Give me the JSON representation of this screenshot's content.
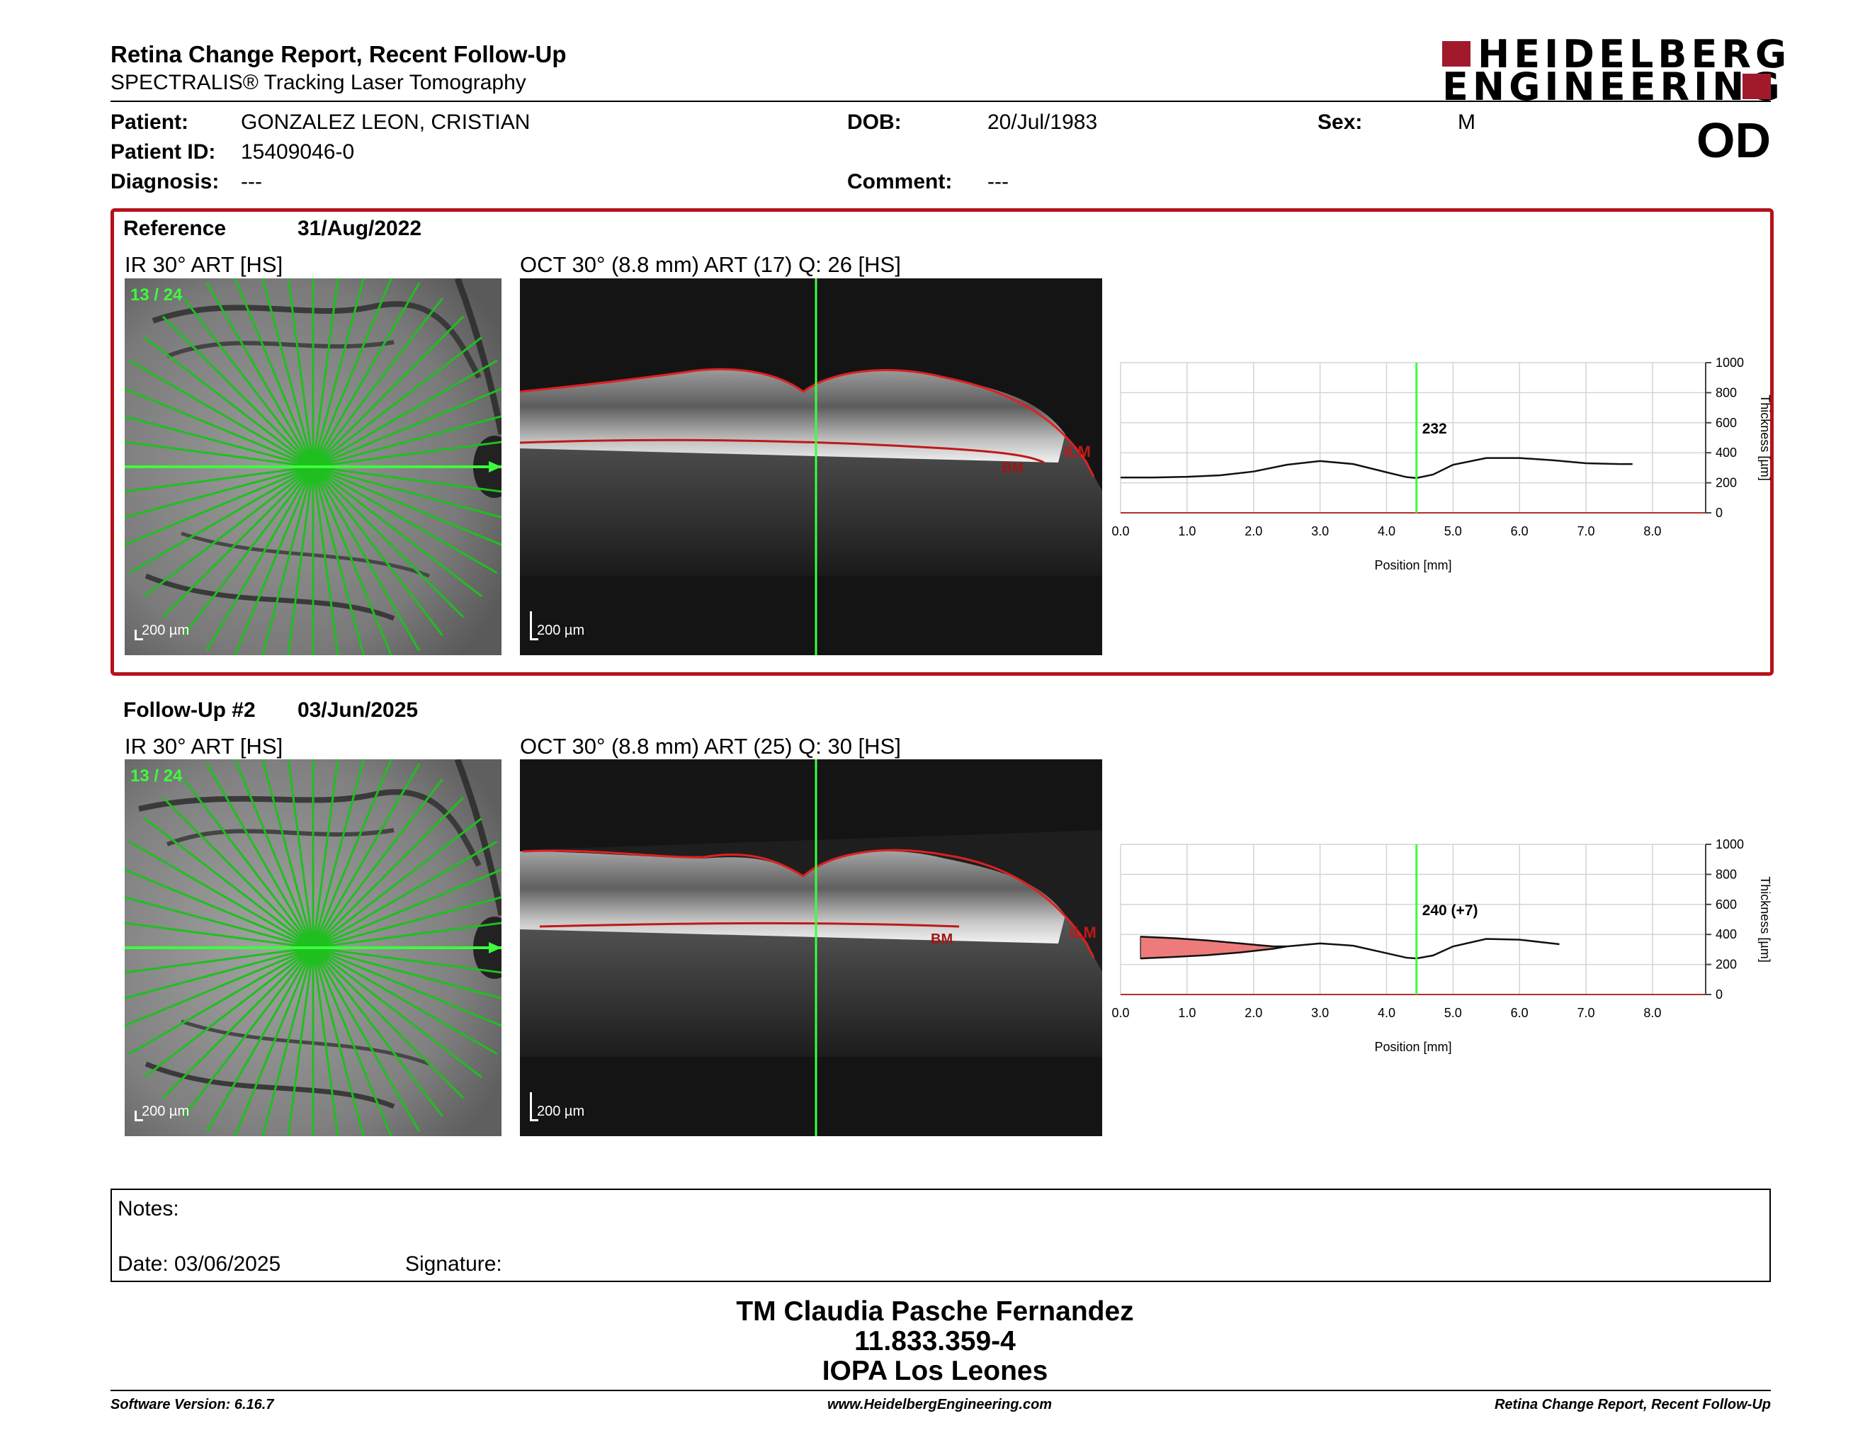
{
  "header": {
    "title": "Retina Change Report, Recent Follow-Up",
    "subtitle": "SPECTRALIS® Tracking Laser Tomography",
    "logo_line1": "HEIDELBERG",
    "logo_line2": "ENGINEERING"
  },
  "patient": {
    "patient_label": "Patient:",
    "patient_value": "GONZALEZ LEON, CRISTIAN",
    "id_label": "Patient ID:",
    "id_value": "15409046-0",
    "diagnosis_label": "Diagnosis:",
    "diagnosis_value": "---",
    "dob_label": "DOB:",
    "dob_value": "20/Jul/1983",
    "comment_label": "Comment:",
    "comment_value": "---",
    "sex_label": "Sex:",
    "sex_value": "M",
    "eye": "OD"
  },
  "reference": {
    "label": "Reference",
    "date": "31/Aug/2022",
    "ir_caption": "IR 30° ART [HS]",
    "ir_scan_index": "13 / 24",
    "ir_scale": "200 µm",
    "oct_caption": "OCT 30° (8.8 mm) ART (17) Q: 26 [HS]",
    "oct_scale": "200 µm",
    "layer_ilm": "ILM",
    "layer_bm": "BM"
  },
  "followup": {
    "label": "Follow-Up #2",
    "date": "03/Jun/2025",
    "ir_caption": "IR 30° ART [HS]",
    "ir_scan_index": "13 / 24",
    "ir_scale": "200 µm",
    "oct_caption": "OCT 30° (8.8 mm) ART (25) Q: 30 [HS]",
    "oct_scale": "200 µm",
    "layer_ilm": "ILM",
    "layer_bm": "BM"
  },
  "chart_data": [
    {
      "type": "line",
      "xlabel": "Position [mm]",
      "ylabel": "Thickness [µm]",
      "xlim": [
        0,
        8.8
      ],
      "ylim": [
        0,
        1000
      ],
      "x_ticks": [
        "0.0",
        "1.0",
        "2.0",
        "3.0",
        "4.0",
        "5.0",
        "6.0",
        "7.0",
        "8.0"
      ],
      "y_ticks": [
        "0",
        "200",
        "400",
        "600",
        "800",
        "1000"
      ],
      "grid": true,
      "marker_x": 4.45,
      "marker_label": "232",
      "series": [
        {
          "x": [
            0.0,
            0.5,
            1.0,
            1.5,
            2.0,
            2.5,
            3.0,
            3.5,
            4.0,
            4.3,
            4.45,
            4.7,
            5.0,
            5.5,
            6.0,
            6.5,
            7.0,
            7.5,
            7.7
          ],
          "y": [
            235,
            235,
            240,
            250,
            275,
            320,
            345,
            325,
            270,
            238,
            232,
            255,
            320,
            365,
            365,
            350,
            330,
            325,
            325
          ]
        }
      ]
    },
    {
      "type": "line",
      "xlabel": "Position [mm]",
      "ylabel": "Thickness [µm]",
      "xlim": [
        0,
        8.8
      ],
      "ylim": [
        0,
        1000
      ],
      "x_ticks": [
        "0.0",
        "1.0",
        "2.0",
        "3.0",
        "4.0",
        "5.0",
        "6.0",
        "7.0",
        "8.0"
      ],
      "y_ticks": [
        "0",
        "200",
        "400",
        "600",
        "800",
        "1000"
      ],
      "grid": true,
      "marker_x": 4.45,
      "marker_label": "240 (+7)",
      "series": [
        {
          "x": [
            0.3,
            0.8,
            1.3,
            1.8,
            2.3,
            2.5,
            3.0,
            3.5,
            4.0,
            4.3,
            4.45,
            4.7,
            5.0,
            5.5,
            6.0,
            6.6
          ],
          "y": [
            385,
            375,
            360,
            340,
            320,
            320,
            340,
            325,
            275,
            245,
            240,
            260,
            320,
            370,
            365,
            335
          ]
        },
        {
          "x": [
            0.3,
            0.8,
            1.3,
            1.8,
            2.3,
            2.5
          ],
          "y": [
            240,
            250,
            262,
            280,
            305,
            320
          ]
        }
      ],
      "fill_color": "#ee7b7b"
    }
  ],
  "notes": {
    "notes_label": "Notes:",
    "date_label": "Date: 03/06/2025",
    "signature_label": "Signature:"
  },
  "footer": {
    "name": "TM Claudia Pasche Fernandez",
    "id": "11.833.359-4",
    "org": "IOPA Los Leones",
    "software": "Software Version: 6.16.7",
    "website": "www.HeidelbergEngineering.com",
    "report": "Retina Change Report, Recent Follow-Up"
  }
}
